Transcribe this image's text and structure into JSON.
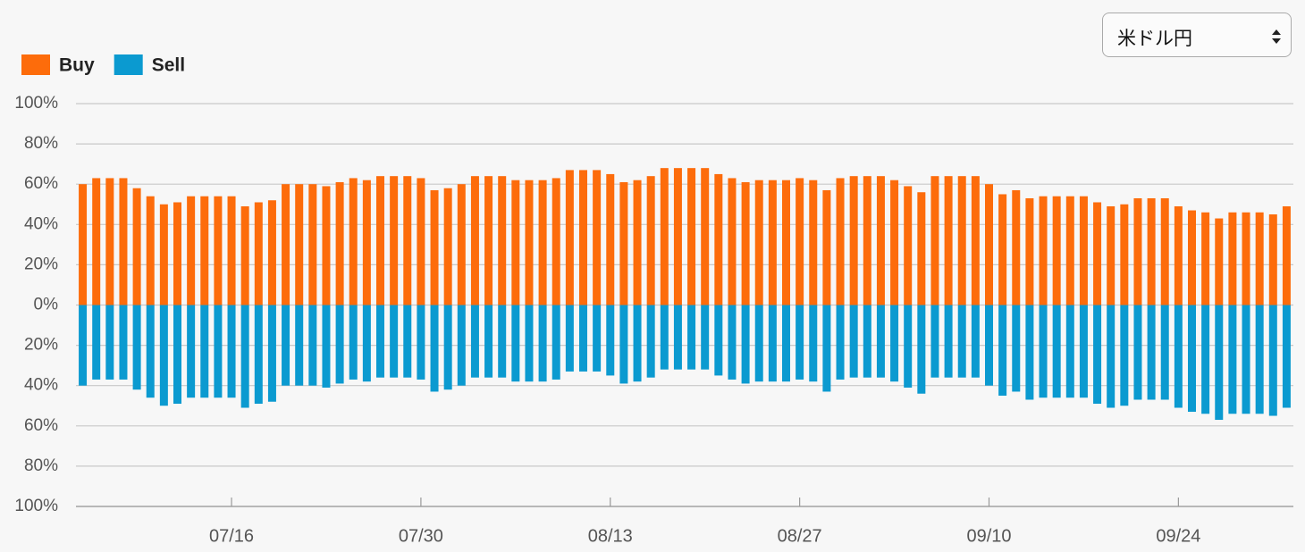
{
  "controls": {
    "pair": "米ドル円"
  },
  "chart_data": {
    "type": "diverging-bar",
    "categories": [
      null,
      null,
      null,
      null,
      null,
      null,
      null,
      null,
      null,
      null,
      null,
      "07/16",
      null,
      null,
      null,
      null,
      null,
      null,
      null,
      null,
      null,
      null,
      null,
      null,
      null,
      "07/30",
      null,
      null,
      null,
      null,
      null,
      null,
      null,
      null,
      null,
      null,
      null,
      null,
      null,
      "08/13",
      null,
      null,
      null,
      null,
      null,
      null,
      null,
      null,
      null,
      null,
      null,
      null,
      null,
      "08/27",
      null,
      null,
      null,
      null,
      null,
      null,
      null,
      null,
      null,
      null,
      null,
      null,
      null,
      "09/10",
      null,
      null,
      null,
      null,
      null,
      null,
      null,
      null,
      null,
      null,
      null,
      null,
      null,
      "09/24",
      null,
      null,
      null,
      null,
      null,
      null,
      null,
      null
    ],
    "series": [
      {
        "name": "Buy",
        "color": "#fd6c0b",
        "values": [
          60,
          63,
          63,
          63,
          58,
          54,
          50,
          51,
          54,
          54,
          54,
          54,
          49,
          51,
          52,
          60,
          60,
          60,
          59,
          61,
          63,
          62,
          64,
          64,
          64,
          63,
          57,
          58,
          60,
          64,
          64,
          64,
          62,
          62,
          62,
          63,
          67,
          67,
          67,
          65,
          61,
          62,
          64,
          68,
          68,
          68,
          68,
          65,
          63,
          61,
          62,
          62,
          62,
          63,
          62,
          57,
          63,
          64,
          64,
          64,
          62,
          59,
          56,
          64,
          64,
          64,
          64,
          60,
          55,
          57,
          53,
          54,
          54,
          54,
          54,
          51,
          49,
          50,
          53,
          53,
          53,
          49,
          47,
          46,
          43,
          46,
          46,
          46,
          45,
          49
        ]
      },
      {
        "name": "Sell",
        "color": "#0b9ad0",
        "values": [
          -40,
          -37,
          -37,
          -37,
          -42,
          -46,
          -50,
          -49,
          -46,
          -46,
          -46,
          -46,
          -51,
          -49,
          -48,
          -40,
          -40,
          -40,
          -41,
          -39,
          -37,
          -38,
          -36,
          -36,
          -36,
          -37,
          -43,
          -42,
          -40,
          -36,
          -36,
          -36,
          -38,
          -38,
          -38,
          -37,
          -33,
          -33,
          -33,
          -35,
          -39,
          -38,
          -36,
          -32,
          -32,
          -32,
          -32,
          -35,
          -37,
          -39,
          -38,
          -38,
          -38,
          -37,
          -38,
          -43,
          -37,
          -36,
          -36,
          -36,
          -38,
          -41,
          -44,
          -36,
          -36,
          -36,
          -36,
          -40,
          -45,
          -43,
          -47,
          -46,
          -46,
          -46,
          -46,
          -49,
          -51,
          -50,
          -47,
          -47,
          -47,
          -51,
          -53,
          -54,
          -57,
          -54,
          -54,
          -54,
          -55,
          -51
        ]
      }
    ],
    "ylim": [
      -100,
      100
    ],
    "yticks": [
      {
        "value": 100,
        "label": "100%"
      },
      {
        "value": 80,
        "label": "80%"
      },
      {
        "value": 60,
        "label": "60%"
      },
      {
        "value": 40,
        "label": "40%"
      },
      {
        "value": 20,
        "label": "20%"
      },
      {
        "value": 0,
        "label": "0%"
      },
      {
        "value": -20,
        "label": "20%"
      },
      {
        "value": -40,
        "label": "40%"
      },
      {
        "value": -60,
        "label": "60%"
      },
      {
        "value": -80,
        "label": "80%"
      },
      {
        "value": -100,
        "label": "100%"
      }
    ],
    "grid": true
  }
}
